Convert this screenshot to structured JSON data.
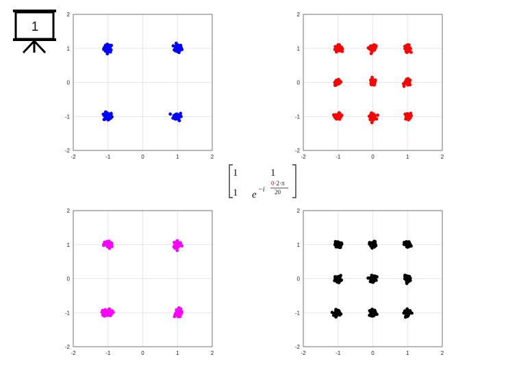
{
  "slide_badge": {
    "number": "1",
    "icon": "presentation-board-icon"
  },
  "matrix": {
    "r1c1": "1",
    "r1c2": "1",
    "r2c1": "1",
    "base": "e",
    "exp_prefix": "−i",
    "numerator_highlight": "0",
    "numerator_rest": "·2·π",
    "denominator": "20",
    "highlight_color": "#e00000"
  },
  "chart_data": [
    {
      "type": "scatter",
      "title": "",
      "xlabel": "",
      "ylabel": "",
      "xlim": [
        -2,
        2
      ],
      "ylim": [
        -2,
        2
      ],
      "xticks": [
        "-2",
        "-1",
        "0",
        "1",
        "2"
      ],
      "yticks": [
        "-2",
        "-1",
        "0",
        "1",
        "2"
      ],
      "grid": true,
      "color": "#0000ff",
      "cluster_centers": [
        [
          -1,
          1
        ],
        [
          1,
          1
        ],
        [
          -1,
          -1
        ],
        [
          1,
          -1
        ]
      ],
      "cluster_spread": 0.06
    },
    {
      "type": "scatter",
      "title": "",
      "xlabel": "",
      "ylabel": "",
      "xlim": [
        -2,
        2
      ],
      "ylim": [
        -2,
        2
      ],
      "xticks": [
        "-2",
        "-1",
        "0",
        "1",
        "2"
      ],
      "yticks": [
        "-2",
        "-1",
        "0",
        "1",
        "2"
      ],
      "grid": true,
      "color": "#ff0000",
      "cluster_centers": [
        [
          -1,
          1
        ],
        [
          0,
          1
        ],
        [
          1,
          1
        ],
        [
          -1,
          0
        ],
        [
          0,
          0
        ],
        [
          1,
          0
        ],
        [
          -1,
          -1
        ],
        [
          0,
          -1
        ],
        [
          1,
          -1
        ]
      ],
      "cluster_spread": 0.045
    },
    {
      "type": "scatter",
      "title": "",
      "xlabel": "",
      "ylabel": "",
      "xlim": [
        -2,
        2
      ],
      "ylim": [
        -2,
        2
      ],
      "xticks": [
        "-2",
        "-1",
        "0",
        "1",
        "2"
      ],
      "yticks": [
        "-2",
        "-1",
        "0",
        "1",
        "2"
      ],
      "grid": true,
      "color": "#ff00ff",
      "cluster_centers": [
        [
          -1,
          1
        ],
        [
          1,
          1
        ],
        [
          -1,
          -1
        ],
        [
          1,
          -1
        ]
      ],
      "cluster_spread": 0.06
    },
    {
      "type": "scatter",
      "title": "",
      "xlabel": "",
      "ylabel": "",
      "xlim": [
        -2,
        2
      ],
      "ylim": [
        -2,
        2
      ],
      "xticks": [
        "-2",
        "-1",
        "0",
        "1",
        "2"
      ],
      "yticks": [
        "-2",
        "-1",
        "0",
        "1",
        "2"
      ],
      "grid": true,
      "color": "#000000",
      "cluster_centers": [
        [
          -1,
          1
        ],
        [
          0,
          1
        ],
        [
          1,
          1
        ],
        [
          -1,
          0
        ],
        [
          0,
          0
        ],
        [
          1,
          0
        ],
        [
          -1,
          -1
        ],
        [
          0,
          -1
        ],
        [
          1,
          -1
        ]
      ],
      "cluster_spread": 0.045
    }
  ]
}
